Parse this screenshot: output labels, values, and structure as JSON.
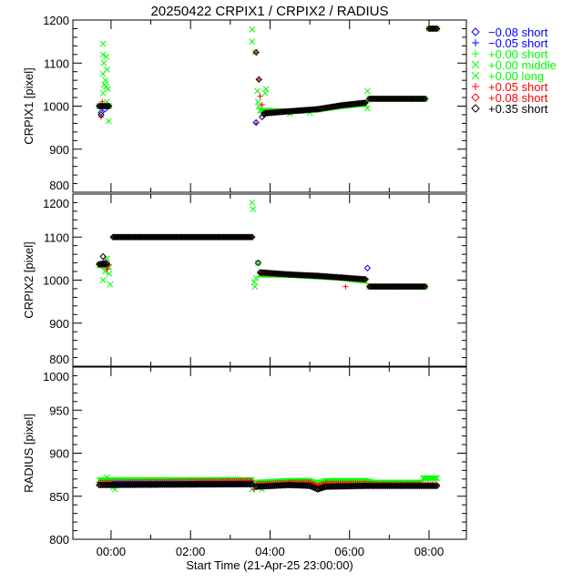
{
  "chart_data": {
    "type": "scatter",
    "title": "20250422 CRPIX1 / CRPIX2 / RADIUS",
    "xlabel": "Start Time (21-Apr-25 23:00:00)",
    "x_units": "hours from 00:00",
    "xlim": [
      -0.96,
      8.94
    ],
    "x_ticks": [
      0,
      2,
      4,
      6,
      8
    ],
    "x_tick_labels": [
      "00:00",
      "02:00",
      "04:00",
      "06:00",
      "08:00"
    ],
    "legend_placement": "right-outside-top",
    "legend": [
      {
        "symbol": "diamond",
        "color": "#0000ff",
        "offset": "−0.08",
        "kind": "short"
      },
      {
        "symbol": "plus",
        "color": "#0000ff",
        "offset": "−0.05",
        "kind": "short"
      },
      {
        "symbol": "plus",
        "color": "#00ff00",
        "offset": "+0.00",
        "kind": "short"
      },
      {
        "symbol": "cross",
        "color": "#00ff00",
        "offset": "+0.00",
        "kind": "middle"
      },
      {
        "symbol": "cross",
        "color": "#00ff00",
        "offset": "+0.00",
        "kind": "long"
      },
      {
        "symbol": "plus",
        "color": "#ff0000",
        "offset": "+0.05",
        "kind": "short"
      },
      {
        "symbol": "diamond",
        "color": "#ff0000",
        "offset": "+0.08",
        "kind": "short"
      },
      {
        "symbol": "diamond",
        "color": "#000000",
        "offset": "+0.35",
        "kind": "short"
      }
    ],
    "panels": [
      {
        "ylabel": "CRPIX1 [pixel]",
        "ylim": [
          800,
          1200
        ],
        "y_ticks": [
          800,
          900,
          1000,
          1100,
          1200
        ],
        "y_tick_labels": [
          "800",
          "900",
          "1000",
          "1100",
          "1200"
        ],
        "series": [
          {
            "symbol": "cross",
            "color": "#00ff00",
            "segments": [
              [
                [
                  -0.3,
                  1000
                ],
                [
                  -0.05,
                  1000
                ]
              ],
              [
                [
                  3.75,
                  990
                ],
                [
                  4.5,
                  988
                ],
                [
                  5.2,
                  992
                ],
                [
                  5.8,
                  1000
                ],
                [
                  6.4,
                  1005
                ]
              ],
              [
                [
                  6.5,
                  1017
                ],
                [
                  7.9,
                  1017
                ]
              ],
              [
                [
                  8.0,
                  1180
                ],
                [
                  8.2,
                  1180
                ]
              ]
            ],
            "points": [
              [
                -0.2,
                1145
              ],
              [
                -0.2,
                1120
              ],
              [
                -0.18,
                1100
              ],
              [
                -0.2,
                1075
              ],
              [
                -0.17,
                1050
              ],
              [
                -0.2,
                1030
              ],
              [
                -0.12,
                1115
              ],
              [
                -0.1,
                1085
              ],
              [
                -0.14,
                1060
              ],
              [
                -0.08,
                1040
              ],
              [
                -0.1,
                1010
              ],
              [
                -0.06,
                965
              ],
              [
                -0.12,
                1045
              ],
              [
                3.55,
                1178
              ],
              [
                3.55,
                1150
              ],
              [
                3.62,
                1125
              ],
              [
                3.68,
                1035
              ],
              [
                3.7,
                1010
              ],
              [
                3.72,
                1000
              ],
              [
                3.9,
                1040
              ],
              [
                3.88,
                1030
              ],
              [
                4.5,
                982
              ],
              [
                5.0,
                985
              ],
              [
                6.45,
                1035
              ],
              [
                6.45,
                995
              ]
            ]
          },
          {
            "symbol": "plus",
            "color": "#ff0000",
            "segments": [
              [
                [
                  -0.3,
                  1000
                ],
                [
                  -0.05,
                  1000
                ]
              ],
              [
                [
                  3.85,
                  985
                ],
                [
                  4.5,
                  989
                ],
                [
                  5.2,
                  993
                ],
                [
                  5.8,
                  1002
                ],
                [
                  6.4,
                  1008
                ]
              ],
              [
                [
                  6.5,
                  1017
                ],
                [
                  7.9,
                  1017
                ]
              ],
              [
                [
                  8.0,
                  1180
                ],
                [
                  8.2,
                  1180
                ]
              ]
            ],
            "points": [
              [
                -0.22,
                1010
              ],
              [
                3.65,
                1125
              ],
              [
                3.72,
                1062
              ],
              [
                3.75,
                1023
              ],
              [
                3.8,
                1003
              ],
              [
                3.65,
                960
              ],
              [
                -0.25,
                975
              ]
            ]
          },
          {
            "symbol": "diamond",
            "color": "#0000ff",
            "segments": [],
            "points": [
              [
                -0.25,
                985
              ],
              [
                -0.15,
                993
              ],
              [
                3.65,
                962
              ],
              [
                3.85,
                980
              ]
            ]
          },
          {
            "symbol": "diamond",
            "color": "#000000",
            "segments": [
              [
                [
                  -0.3,
                  1000
                ],
                [
                  -0.05,
                  1000
                ]
              ],
              [
                [
                  3.85,
                  983
                ],
                [
                  4.5,
                  988
                ],
                [
                  5.2,
                  993
                ],
                [
                  5.8,
                  1002
                ],
                [
                  6.4,
                  1008
                ]
              ],
              [
                [
                  6.5,
                  1017
                ],
                [
                  7.9,
                  1017
                ]
              ],
              [
                [
                  8.0,
                  1180
                ],
                [
                  8.2,
                  1180
                ]
              ]
            ],
            "points": [
              [
                -0.25,
                980
              ],
              [
                3.65,
                1125
              ],
              [
                3.72,
                1062
              ],
              [
                3.8,
                975
              ]
            ]
          }
        ]
      },
      {
        "ylabel": "CRPIX2 [pixel]",
        "ylim": [
          800,
          1200
        ],
        "y_ticks": [
          800,
          900,
          1000,
          1100,
          1200
        ],
        "y_tick_labels": [
          "800",
          "900",
          "1000",
          "1100",
          "1200"
        ],
        "series": [
          {
            "symbol": "cross",
            "color": "#00ff00",
            "segments": [
              [
                [
                  -0.3,
                  1035
                ],
                [
                  -0.05,
                  1030
                ]
              ],
              [
                [
                  3.75,
                  1012
                ],
                [
                  4.5,
                  1012
                ],
                [
                  5.2,
                  1008
                ],
                [
                  5.8,
                  1005
                ],
                [
                  6.4,
                  998
                ]
              ],
              [
                [
                  6.5,
                  985
                ],
                [
                  7.9,
                  985
                ]
              ]
            ],
            "points": [
              [
                -0.2,
                1000
              ],
              [
                -0.15,
                1020
              ],
              [
                -0.1,
                1050
              ],
              [
                -0.05,
                1015
              ],
              [
                -0.02,
                990
              ],
              [
                3.55,
                1180
              ],
              [
                3.57,
                1165
              ],
              [
                3.6,
                995
              ],
              [
                3.62,
                985
              ],
              [
                3.7,
                1040
              ],
              [
                3.65,
                1005
              ]
            ]
          },
          {
            "symbol": "plus",
            "color": "#ff0000",
            "segments": [
              [
                [
                  -0.3,
                  1035
                ],
                [
                  -0.05,
                  1035
                ]
              ],
              [
                [
                  0.05,
                  1100
                ],
                [
                  3.55,
                  1100
                ]
              ],
              [
                [
                  3.75,
                  1015
                ],
                [
                  4.5,
                  1013
                ],
                [
                  5.2,
                  1010
                ],
                [
                  5.8,
                  1006
                ],
                [
                  6.4,
                  1000
                ]
              ],
              [
                [
                  6.5,
                  985
                ],
                [
                  7.9,
                  985
                ]
              ]
            ],
            "points": [
              [
                -0.15,
                1045
              ],
              [
                -0.1,
                1025
              ],
              [
                5.9,
                985
              ]
            ]
          },
          {
            "symbol": "diamond",
            "color": "#0000ff",
            "segments": [],
            "points": [
              [
                6.45,
                1028
              ],
              [
                -0.2,
                1040
              ]
            ]
          },
          {
            "symbol": "diamond",
            "color": "#000000",
            "segments": [
              [
                [
                  -0.3,
                  1037
                ],
                [
                  -0.1,
                  1038
                ]
              ],
              [
                [
                  0.05,
                  1100
                ],
                [
                  3.55,
                  1100
                ]
              ],
              [
                [
                  3.75,
                  1018
                ],
                [
                  4.5,
                  1013
                ],
                [
                  5.2,
                  1010
                ],
                [
                  5.8,
                  1006
                ],
                [
                  6.4,
                  1002
                ]
              ],
              [
                [
                  6.5,
                  985
                ],
                [
                  7.9,
                  985
                ]
              ]
            ],
            "points": [
              [
                -0.2,
                1055
              ],
              [
                3.7,
                1040
              ]
            ]
          }
        ]
      },
      {
        "ylabel": "RADIUS [pixel]",
        "ylim": [
          800,
          1000
        ],
        "y_ticks": [
          800,
          850,
          900,
          950,
          1000
        ],
        "y_tick_labels": [
          "800",
          "850",
          "900",
          "950",
          "1000"
        ],
        "series": [
          {
            "symbol": "cross",
            "color": "#00ff00",
            "segments": [
              [
                [
                  -0.3,
                  869
                ],
                [
                  3.55,
                  869
                ]
              ],
              [
                [
                  3.65,
                  866
                ],
                [
                  4.5,
                  868
                ],
                [
                  5.0,
                  868
                ],
                [
                  5.2,
                  865
                ],
                [
                  5.4,
                  868
                ],
                [
                  6.4,
                  868
                ],
                [
                  6.6,
                  866
                ],
                [
                  7.8,
                  866
                ]
              ],
              [
                [
                  7.85,
                  871
                ],
                [
                  8.2,
                  871
                ]
              ]
            ],
            "points": [
              [
                -0.1,
                872
              ],
              [
                0.05,
                860
              ],
              [
                0.1,
                858
              ],
              [
                3.55,
                858
              ],
              [
                3.8,
                858
              ]
            ]
          },
          {
            "symbol": "plus",
            "color": "#ff0000",
            "segments": [
              [
                [
                  -0.3,
                  866
                ],
                [
                  3.55,
                  868
                ]
              ],
              [
                [
                  3.65,
                  864
                ],
                [
                  4.5,
                  866
                ],
                [
                  5.0,
                  866
                ],
                [
                  5.2,
                  862
                ],
                [
                  5.4,
                  865
                ],
                [
                  6.4,
                  865
                ],
                [
                  6.6,
                  864
                ],
                [
                  8.2,
                  864
                ]
              ]
            ],
            "points": [
              [
                3.6,
                858
              ]
            ]
          },
          {
            "symbol": "diamond",
            "color": "#0000ff",
            "segments": [
              [
                [
                  0.05,
                  864
                ],
                [
                  3.55,
                  864
                ]
              ]
            ],
            "points": []
          },
          {
            "symbol": "diamond",
            "color": "#000000",
            "segments": [
              [
                [
                  -0.3,
                  863
                ],
                [
                  3.55,
                  864
                ]
              ],
              [
                [
                  3.65,
                  861
                ],
                [
                  4.5,
                  863
                ],
                [
                  5.0,
                  862
                ],
                [
                  5.2,
                  858
                ],
                [
                  5.4,
                  861
                ],
                [
                  6.4,
                  862
                ],
                [
                  6.6,
                  862
                ],
                [
                  8.2,
                  862
                ]
              ]
            ],
            "points": []
          }
        ]
      }
    ]
  }
}
